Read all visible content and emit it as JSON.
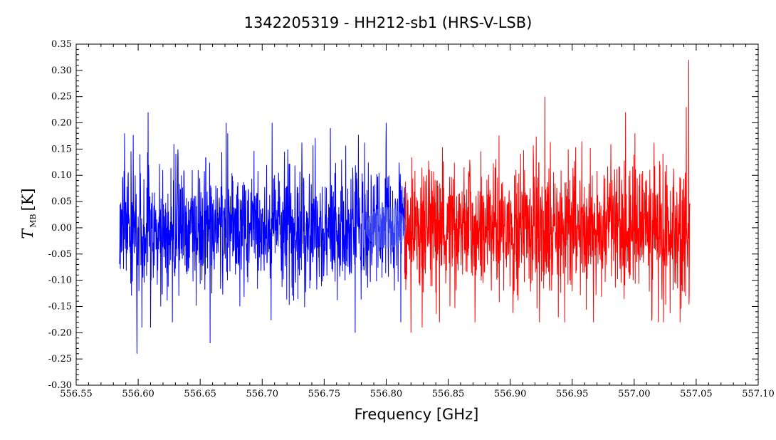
{
  "chart_data": {
    "type": "line",
    "title": "1342205319 - HH212-sb1 (HRS-V-LSB)",
    "xlabel": "Frequency [GHz]",
    "ylabel": {
      "main": "T",
      "subscript": "MB",
      "unit": "[K]"
    },
    "xlim": [
      556.55,
      557.1
    ],
    "ylim": [
      -0.3,
      0.35
    ],
    "x_ticks": [
      "556.55",
      "556.60",
      "556.65",
      "556.70",
      "556.75",
      "556.80",
      "556.85",
      "556.90",
      "556.95",
      "557.00",
      "557.05",
      "557.10"
    ],
    "y_ticks": [
      "-0.30",
      "-0.25",
      "-0.20",
      "-0.15",
      "-0.10",
      "-0.05",
      "0.00",
      "0.05",
      "0.10",
      "0.15",
      "0.20",
      "0.25",
      "0.30",
      "0.35"
    ],
    "grid": false,
    "series": [
      {
        "color": "#0000ff",
        "x_range": [
          556.585,
          556.815
        ],
        "spikes": [
          {
            "x": 556.589,
            "y": 0.18
          },
          {
            "x": 556.599,
            "y": -0.24
          },
          {
            "x": 556.603,
            "y": -0.19
          },
          {
            "x": 556.608,
            "y": 0.22
          },
          {
            "x": 556.61,
            "y": -0.19
          },
          {
            "x": 556.658,
            "y": -0.22
          },
          {
            "x": 556.671,
            "y": 0.2
          },
          {
            "x": 556.708,
            "y": 0.2
          },
          {
            "x": 556.755,
            "y": 0.19
          },
          {
            "x": 556.775,
            "y": -0.2
          },
          {
            "x": 556.8,
            "y": 0.2
          }
        ]
      },
      {
        "color": "#ff0000",
        "x_range": [
          556.815,
          557.045
        ],
        "spikes": [
          {
            "x": 556.82,
            "y": -0.2
          },
          {
            "x": 556.829,
            "y": -0.19
          },
          {
            "x": 556.928,
            "y": 0.25
          },
          {
            "x": 556.944,
            "y": -0.18
          },
          {
            "x": 556.993,
            "y": 0.22
          },
          {
            "x": 557.037,
            "y": -0.18
          },
          {
            "x": 557.042,
            "y": 0.23
          },
          {
            "x": 557.044,
            "y": 0.32
          }
        ]
      }
    ],
    "noise": {
      "sigma": 0.062,
      "points_per_series": 1150,
      "seed": 1342205319
    },
    "highlight": {
      "x": 556.8,
      "y": 0.0,
      "color": "#6f86e6"
    }
  }
}
